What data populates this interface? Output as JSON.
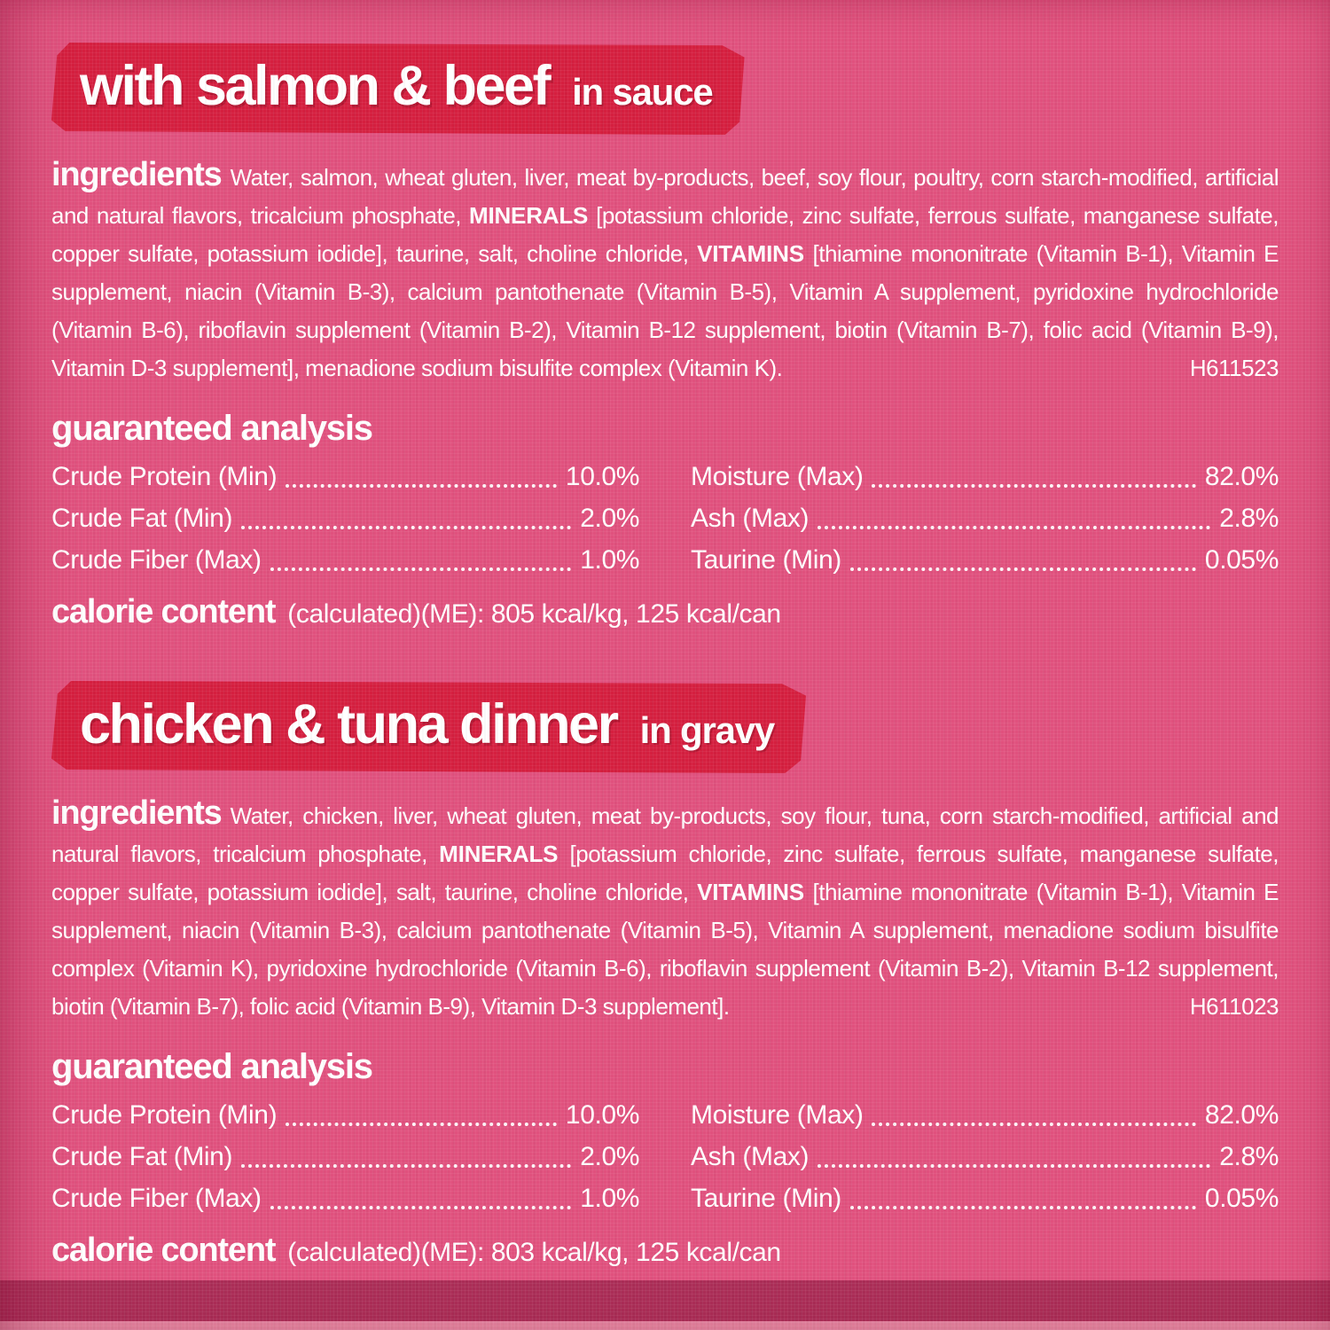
{
  "colors": {
    "background": "#e0517e",
    "banner": "#d51f3f",
    "text": "#ffffff",
    "footer_band": "#ab2d57",
    "footer_edge": "#e4839f"
  },
  "sections": [
    {
      "banner": {
        "title": "with salmon & beef",
        "subtitle": "in sauce"
      },
      "ingredients": {
        "label": "ingredients",
        "segments": [
          {
            "text": "Water, salmon, wheat gluten, liver, meat by-products, beef, soy flour, poultry, corn starch-modified, artificial and natural flavors, tricalcium phosphate, "
          },
          {
            "text": "MINERALS"
          },
          {
            "text": " [potassium chloride, zinc sulfate, ferrous sulfate, manganese sulfate, copper sulfate, potassium iodide], taurine, salt, choline chloride, "
          },
          {
            "text": "VITAMINS"
          },
          {
            "text": " [thiamine mononitrate (Vitamin B-1), Vitamin E supplement, niacin (Vitamin B-3), calcium pantothenate (Vitamin B-5), Vitamin A supplement, pyridoxine hydrochloride (Vitamin B-6), riboflavin supplement (Vitamin B-2), Vitamin B-12 supplement, biotin (Vitamin B-7), folic acid (Vitamin B-9), Vitamin D-3 supplement], menadione sodium bisulfite complex (Vitamin K)."
          }
        ],
        "code": "H611523"
      },
      "analysis": {
        "heading": "guaranteed analysis",
        "left": [
          {
            "label": "Crude Protein (Min)",
            "value": "10.0%"
          },
          {
            "label": "Crude Fat (Min)",
            "value": "2.0%"
          },
          {
            "label": "Crude Fiber (Max)",
            "value": "1.0%"
          }
        ],
        "right": [
          {
            "label": "Moisture (Max)",
            "value": "82.0%"
          },
          {
            "label": "Ash (Max)",
            "value": "2.8%"
          },
          {
            "label": "Taurine (Min)",
            "value": "0.05%"
          }
        ]
      },
      "calories": {
        "label": "calorie content",
        "detail": "(calculated)(ME): 805 kcal/kg, 125 kcal/can"
      }
    },
    {
      "banner": {
        "title": "chicken & tuna dinner",
        "subtitle": "in gravy"
      },
      "ingredients": {
        "label": "ingredients",
        "segments": [
          {
            "text": "Water, chicken, liver, wheat gluten, meat by-products, soy flour, tuna, corn starch-modified, artificial and natural flavors, tricalcium phosphate, "
          },
          {
            "text": "MINERALS"
          },
          {
            "text": " [potassium chloride, zinc sulfate, ferrous sulfate, manganese sulfate, copper sulfate, potassium iodide], salt, taurine, choline chloride, "
          },
          {
            "text": "VITAMINS"
          },
          {
            "text": " [thiamine mononitrate (Vitamin B-1), Vitamin E supplement, niacin (Vitamin B-3), calcium pantothenate (Vitamin B-5), Vitamin A supplement, menadione sodium bisulfite complex (Vitamin K), pyridoxine hydrochloride (Vitamin B-6), riboflavin supplement (Vitamin B-2), Vitamin B-12 supplement, biotin (Vitamin B-7), folic acid (Vitamin B-9), Vitamin D-3 supplement]."
          }
        ],
        "code": "H611023"
      },
      "analysis": {
        "heading": "guaranteed analysis",
        "left": [
          {
            "label": "Crude Protein (Min)",
            "value": "10.0%"
          },
          {
            "label": "Crude Fat (Min)",
            "value": "2.0%"
          },
          {
            "label": "Crude Fiber (Max)",
            "value": "1.0%"
          }
        ],
        "right": [
          {
            "label": "Moisture (Max)",
            "value": "82.0%"
          },
          {
            "label": "Ash (Max)",
            "value": "2.8%"
          },
          {
            "label": "Taurine (Min)",
            "value": "0.05%"
          }
        ]
      },
      "calories": {
        "label": "calorie content",
        "detail": "(calculated)(ME): 803 kcal/kg, 125 kcal/can"
      }
    }
  ]
}
